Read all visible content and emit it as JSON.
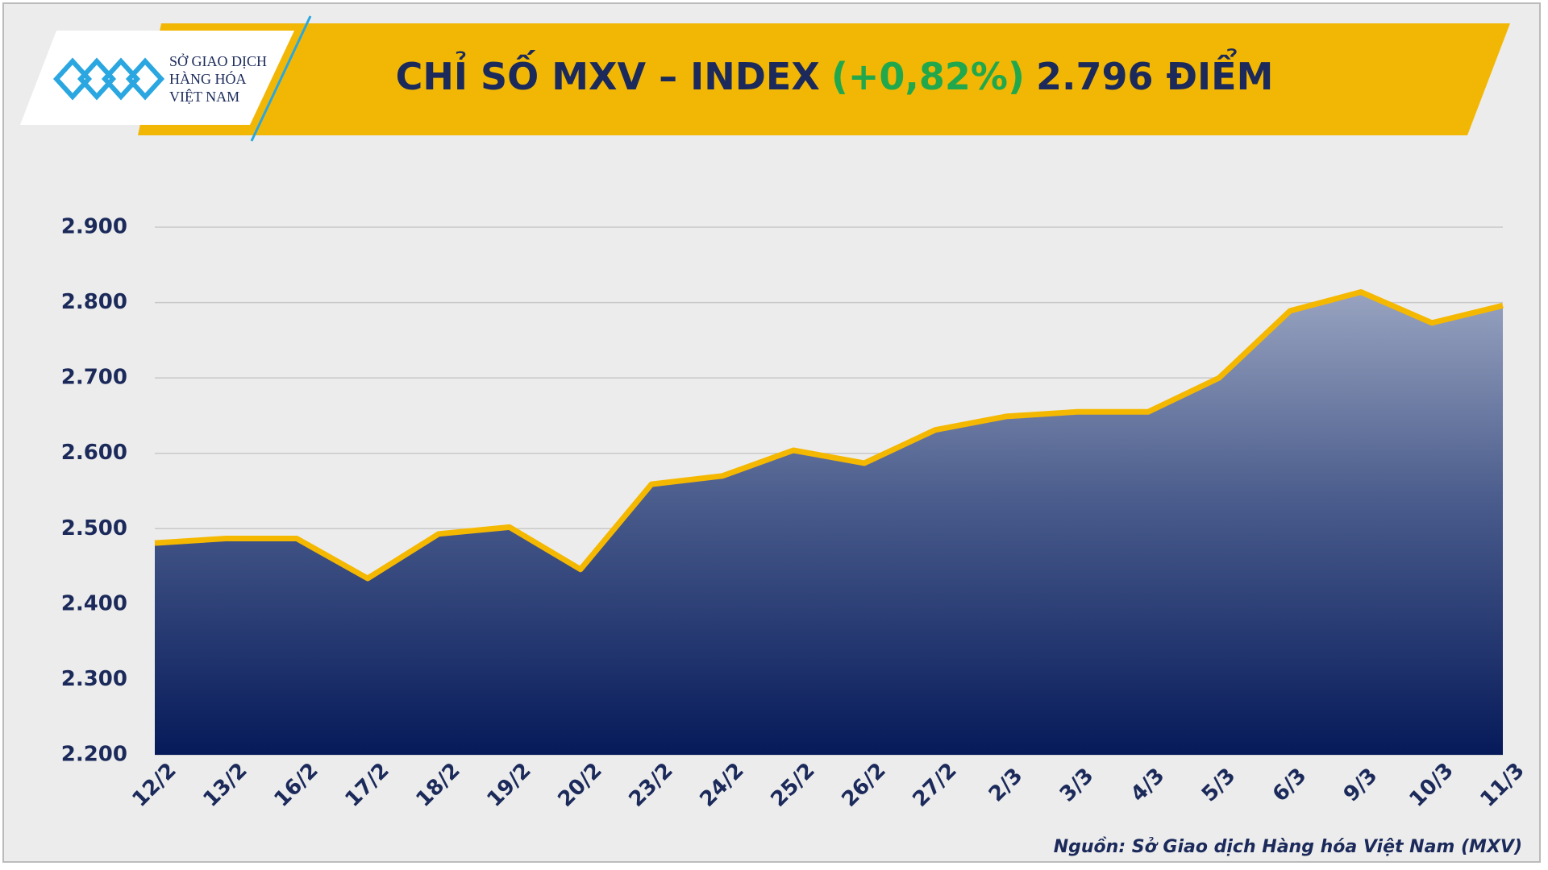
{
  "chart_data": {
    "type": "line",
    "title": {
      "name": "CHỈ SỐ MXV – INDEX",
      "change": "(+0,82%)",
      "level": "2.796 ĐIỂM"
    },
    "logo": [
      "SỞ GIAO DỊCH",
      "HÀNG HÓA",
      "VIỆT NAM"
    ],
    "source": "Nguồn: Sở Giao dịch Hàng hóa Việt Nam (MXV)",
    "categories": [
      "12/2",
      "13/2",
      "16/2",
      "17/2",
      "18/2",
      "19/2",
      "20/2",
      "23/2",
      "24/2",
      "25/2",
      "26/2",
      "27/2",
      "2/3",
      "3/3",
      "4/3",
      "5/3",
      "6/3",
      "9/3",
      "10/3",
      "11/3"
    ],
    "values": [
      2481,
      2487,
      2487,
      2434,
      2493,
      2502,
      2446,
      2559,
      2570,
      2604,
      2587,
      2631,
      2649,
      2655,
      2655,
      2700,
      2789,
      2814,
      2773,
      2796
    ],
    "color": "#f5b800",
    "ylim": [
      2200,
      2900
    ],
    "yticks": [
      {
        "value": 2200,
        "label": "2.200"
      },
      {
        "value": 2300,
        "label": "2.300"
      },
      {
        "value": 2400,
        "label": "2.400"
      },
      {
        "value": 2500,
        "label": "2.500"
      },
      {
        "value": 2600,
        "label": "2.600"
      },
      {
        "value": 2700,
        "label": "2.700"
      },
      {
        "value": 2800,
        "label": "2.800"
      },
      {
        "value": 2900,
        "label": "2.900"
      }
    ],
    "grid": true
  }
}
